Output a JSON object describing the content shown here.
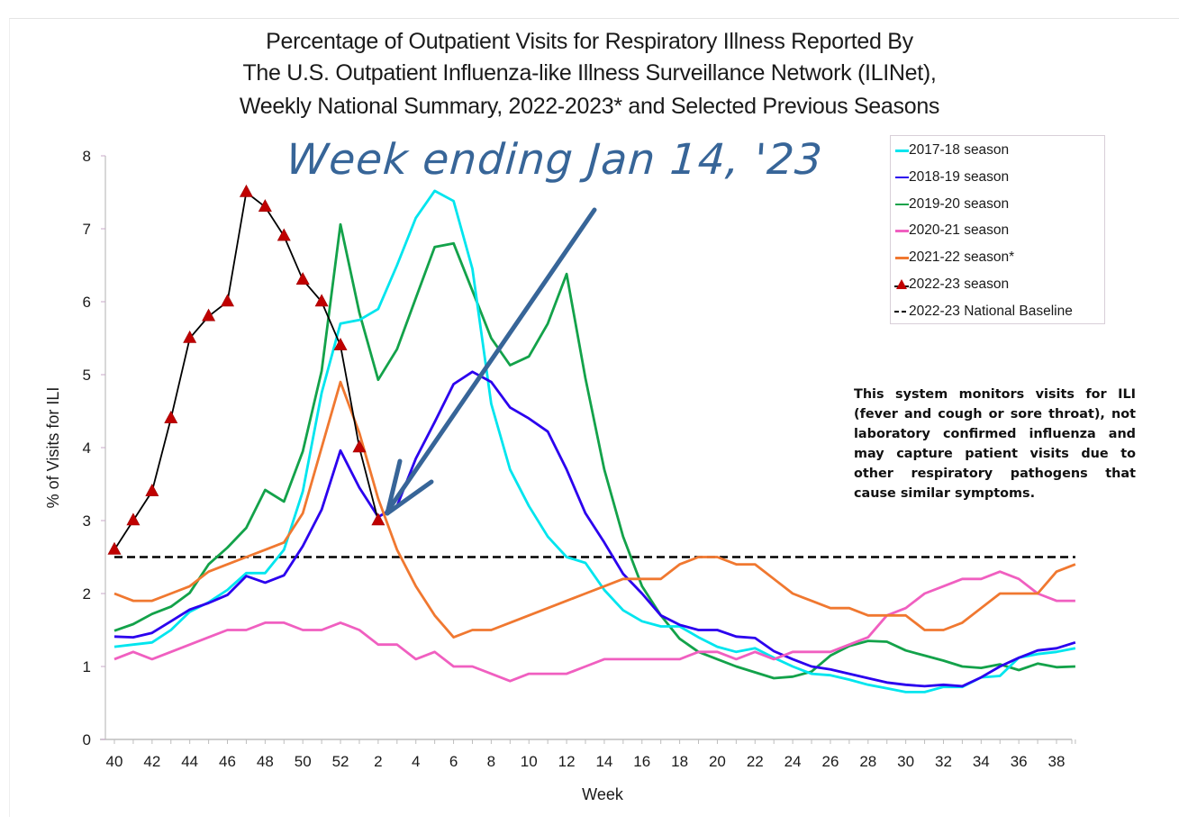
{
  "chart_data": {
    "type": "line",
    "title": [
      "Percentage of Outpatient Visits for Respiratory Illness Reported By",
      "The U.S. Outpatient Influenza-like Illness Surveillance Network (ILINet),",
      "Weekly National Summary, 2022-2023* and Selected Previous Seasons"
    ],
    "xlabel": "Week",
    "ylabel": "% of Visits for ILI",
    "ylim": [
      0,
      8
    ],
    "yticks": [
      0,
      1,
      2,
      3,
      4,
      5,
      6,
      7,
      8
    ],
    "x": [
      40,
      41,
      42,
      43,
      44,
      45,
      46,
      47,
      48,
      49,
      50,
      51,
      52,
      1,
      2,
      3,
      4,
      5,
      6,
      7,
      8,
      9,
      10,
      11,
      12,
      13,
      14,
      15,
      16,
      17,
      18,
      19,
      20,
      21,
      22,
      23,
      24,
      25,
      26,
      27,
      28,
      29,
      30,
      31,
      32,
      33,
      34,
      35,
      36,
      37,
      38,
      39
    ],
    "xtick_labels": [
      "40",
      "42",
      "44",
      "46",
      "48",
      "50",
      "52",
      "2",
      "4",
      "6",
      "8",
      "10",
      "12",
      "14",
      "16",
      "18",
      "20",
      "22",
      "24",
      "26",
      "28",
      "30",
      "32",
      "34",
      "36",
      "38"
    ],
    "grid": false,
    "legend_position": "top-right",
    "series": [
      {
        "name": "2017-18 season",
        "color": "#00e5ee",
        "marker": "none",
        "values": [
          1.27,
          1.3,
          1.33,
          1.5,
          1.75,
          1.88,
          2.05,
          2.28,
          2.28,
          2.6,
          3.4,
          4.75,
          5.7,
          5.75,
          5.9,
          6.5,
          7.15,
          7.52,
          7.38,
          6.45,
          4.6,
          3.7,
          3.2,
          2.78,
          2.5,
          2.42,
          2.05,
          1.77,
          1.62,
          1.55,
          1.55,
          1.4,
          1.27,
          1.2,
          1.25,
          1.12,
          1.0,
          0.9,
          0.88,
          0.82,
          0.75,
          0.7,
          0.65,
          0.65,
          0.72,
          0.72,
          0.85,
          0.87,
          1.12,
          1.17,
          1.2,
          1.25
        ]
      },
      {
        "name": "2018-19 season",
        "color": "#2b00ee",
        "marker": "none",
        "values": [
          1.41,
          1.4,
          1.46,
          1.62,
          1.78,
          1.87,
          1.98,
          2.24,
          2.15,
          2.25,
          2.65,
          3.15,
          3.96,
          3.45,
          3.05,
          3.2,
          3.85,
          4.35,
          4.87,
          5.04,
          4.9,
          4.55,
          4.4,
          4.22,
          3.7,
          3.1,
          2.7,
          2.27,
          2.0,
          1.7,
          1.57,
          1.5,
          1.5,
          1.41,
          1.39,
          1.21,
          1.1,
          1.0,
          0.96,
          0.9,
          0.84,
          0.78,
          0.75,
          0.73,
          0.75,
          0.73,
          0.85,
          1.0,
          1.12,
          1.22,
          1.25,
          1.33
        ]
      },
      {
        "name": "2019-20 season",
        "color": "#13a24a",
        "marker": "none",
        "values": [
          1.49,
          1.58,
          1.72,
          1.82,
          2.01,
          2.4,
          2.63,
          2.9,
          3.42,
          3.26,
          3.95,
          5.05,
          7.06,
          5.85,
          4.93,
          5.35,
          6.05,
          6.75,
          6.8,
          6.15,
          5.5,
          5.13,
          5.25,
          5.7,
          6.38,
          4.95,
          3.7,
          2.78,
          2.1,
          1.7,
          1.38,
          1.2,
          1.1,
          1.0,
          0.92,
          0.84,
          0.86,
          0.93,
          1.15,
          1.28,
          1.35,
          1.34,
          1.22,
          1.15,
          1.08,
          1.0,
          0.98,
          1.03,
          0.95,
          1.04,
          0.99,
          1.0
        ]
      },
      {
        "name": "2020-21 season",
        "color": "#f05fc0",
        "marker": "none",
        "values": [
          1.1,
          1.2,
          1.1,
          1.2,
          1.3,
          1.4,
          1.5,
          1.5,
          1.6,
          1.6,
          1.5,
          1.5,
          1.6,
          1.5,
          1.3,
          1.3,
          1.1,
          1.2,
          1.0,
          1.0,
          0.9,
          0.8,
          0.9,
          0.9,
          0.9,
          1.0,
          1.1,
          1.1,
          1.1,
          1.1,
          1.1,
          1.2,
          1.2,
          1.1,
          1.2,
          1.1,
          1.2,
          1.2,
          1.2,
          1.3,
          1.4,
          1.7,
          1.8,
          2.0,
          2.1,
          2.2,
          2.2,
          2.3,
          2.2,
          2.0,
          1.9,
          1.9
        ]
      },
      {
        "name": "2021-22 season*",
        "color": "#f07830",
        "marker": "none",
        "values": [
          2.0,
          1.9,
          1.9,
          2.0,
          2.1,
          2.3,
          2.4,
          2.5,
          2.6,
          2.7,
          3.1,
          4.0,
          4.9,
          4.2,
          3.3,
          2.6,
          2.1,
          1.7,
          1.4,
          1.5,
          1.5,
          1.6,
          1.7,
          1.8,
          1.9,
          2.0,
          2.1,
          2.2,
          2.2,
          2.2,
          2.4,
          2.5,
          2.5,
          2.4,
          2.4,
          2.2,
          2.0,
          1.9,
          1.8,
          1.8,
          1.7,
          1.7,
          1.7,
          1.5,
          1.5,
          1.6,
          1.8,
          2.0,
          2.0,
          2.0,
          2.3,
          2.4
        ]
      },
      {
        "name": "2022-23 season",
        "color": "#000000",
        "marker": "triangle",
        "marker_color": "#c00000",
        "values": [
          2.6,
          3.0,
          3.4,
          4.4,
          5.5,
          5.8,
          6.0,
          7.5,
          7.3,
          6.9,
          6.3,
          6.0,
          5.4,
          4.0,
          3.0
        ]
      },
      {
        "name": "2022-23 National Baseline",
        "color": "#000000",
        "marker": "none",
        "dashed": true,
        "value": 2.5
      }
    ],
    "annotations": [
      {
        "text": "This system monitors visits for ILI (fever and cough or sore throat), not laboratory confirmed influenza and may capture patient visits due to other respiratory pathogens that cause similar symptoms.",
        "position": "right-middle"
      },
      {
        "text": "Week ending Jan 14, '23",
        "style": "handwritten",
        "color": "#376598",
        "points_to_week": 2,
        "points_to_value": 3.0
      }
    ]
  }
}
